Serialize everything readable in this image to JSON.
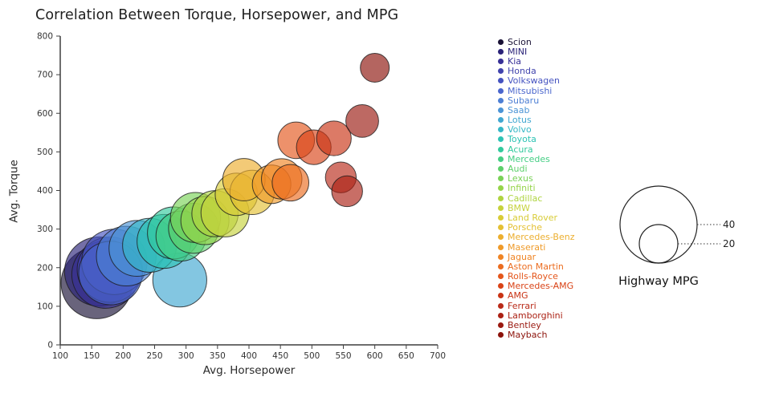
{
  "chart_data": {
    "type": "scatter",
    "title": "Correlation Between Torque, Horsepower, and MPG",
    "xlabel": "Avg. Horsepower",
    "ylabel": "Avg. Torque",
    "xlim": [
      100,
      700
    ],
    "ylim": [
      0,
      800
    ],
    "xticks": [
      100,
      150,
      200,
      250,
      300,
      350,
      400,
      450,
      500,
      550,
      600,
      650,
      700
    ],
    "yticks": [
      0,
      100,
      200,
      300,
      400,
      500,
      600,
      700,
      800
    ],
    "grid": false,
    "legend_position": "right",
    "size_legend": {
      "title": "Highway MPG",
      "values": [
        40,
        20
      ]
    },
    "series": [
      {
        "name": "Scion",
        "color": "#191135",
        "x": 158,
        "y": 160,
        "highway_mpg": 37
      },
      {
        "name": "MINI",
        "color": "#2a2278",
        "x": 162,
        "y": 190,
        "highway_mpg": 36
      },
      {
        "name": "Kia",
        "color": "#373096",
        "x": 172,
        "y": 182,
        "highway_mpg": 35
      },
      {
        "name": "Honda",
        "color": "#4144ad",
        "x": 179,
        "y": 195,
        "highway_mpg": 34
      },
      {
        "name": "Volkswagen",
        "color": "#4553c0",
        "x": 186,
        "y": 215,
        "highway_mpg": 34
      },
      {
        "name": "Mitsubishi",
        "color": "#4a66cd",
        "x": 180,
        "y": 186,
        "highway_mpg": 33
      },
      {
        "name": "Subaru",
        "color": "#4d7fd4",
        "x": 205,
        "y": 230,
        "highway_mpg": 31
      },
      {
        "name": "Saab",
        "color": "#4b94d6",
        "x": 222,
        "y": 250,
        "highway_mpg": 29
      },
      {
        "name": "Lotus",
        "color": "#41a7d1",
        "x": 290,
        "y": 168,
        "highway_mpg": 28
      },
      {
        "name": "Volvo",
        "color": "#35b7c6",
        "x": 242,
        "y": 258,
        "highway_mpg": 28
      },
      {
        "name": "Toyota",
        "color": "#2dc3b4",
        "x": 265,
        "y": 268,
        "highway_mpg": 28
      },
      {
        "name": "Acura",
        "color": "#32ca9d",
        "x": 280,
        "y": 290,
        "highway_mpg": 27
      },
      {
        "name": "Mercedes",
        "color": "#45ce84",
        "x": 292,
        "y": 282,
        "highway_mpg": 26
      },
      {
        "name": "Audi",
        "color": "#5dd06b",
        "x": 312,
        "y": 302,
        "highway_mpg": 26
      },
      {
        "name": "Lexus",
        "color": "#79d257",
        "x": 315,
        "y": 330,
        "highway_mpg": 26
      },
      {
        "name": "Infiniti",
        "color": "#95d449",
        "x": 330,
        "y": 322,
        "highway_mpg": 25
      },
      {
        "name": "Cadillac",
        "color": "#afd441",
        "x": 346,
        "y": 340,
        "highway_mpg": 24
      },
      {
        "name": "BMW",
        "color": "#c6d23c",
        "x": 362,
        "y": 342,
        "highway_mpg": 25
      },
      {
        "name": "Land Rover",
        "color": "#d8cc37",
        "x": 380,
        "y": 390,
        "highway_mpg": 22
      },
      {
        "name": "Porsche",
        "color": "#e4c033",
        "x": 405,
        "y": 395,
        "highway_mpg": 23
      },
      {
        "name": "Mercedes-Benz",
        "color": "#ecae2e",
        "x": 392,
        "y": 428,
        "highway_mpg": 22
      },
      {
        "name": "Maserati",
        "color": "#ef9a29",
        "x": 436,
        "y": 416,
        "highway_mpg": 20
      },
      {
        "name": "Jaguar",
        "color": "#ef8424",
        "x": 452,
        "y": 430,
        "highway_mpg": 21
      },
      {
        "name": "Aston Martin",
        "color": "#eb6c1f",
        "x": 466,
        "y": 420,
        "highway_mpg": 19
      },
      {
        "name": "Rolls-Royce",
        "color": "#e4561b",
        "x": 475,
        "y": 530,
        "highway_mpg": 19
      },
      {
        "name": "Mercedes-AMG",
        "color": "#d94317",
        "x": 503,
        "y": 512,
        "highway_mpg": 18
      },
      {
        "name": "AMG",
        "color": "#c93314",
        "x": 535,
        "y": 535,
        "highway_mpg": 18
      },
      {
        "name": "Ferrari",
        "color": "#b92a18",
        "x": 546,
        "y": 434,
        "highway_mpg": 16
      },
      {
        "name": "Lamborghini",
        "color": "#ab2114",
        "x": 556,
        "y": 398,
        "highway_mpg": 16
      },
      {
        "name": "Bentley",
        "color": "#9a1910",
        "x": 580,
        "y": 580,
        "highway_mpg": 17
      },
      {
        "name": "Maybach",
        "color": "#8c130b",
        "x": 600,
        "y": 718,
        "highway_mpg": 15
      }
    ]
  }
}
